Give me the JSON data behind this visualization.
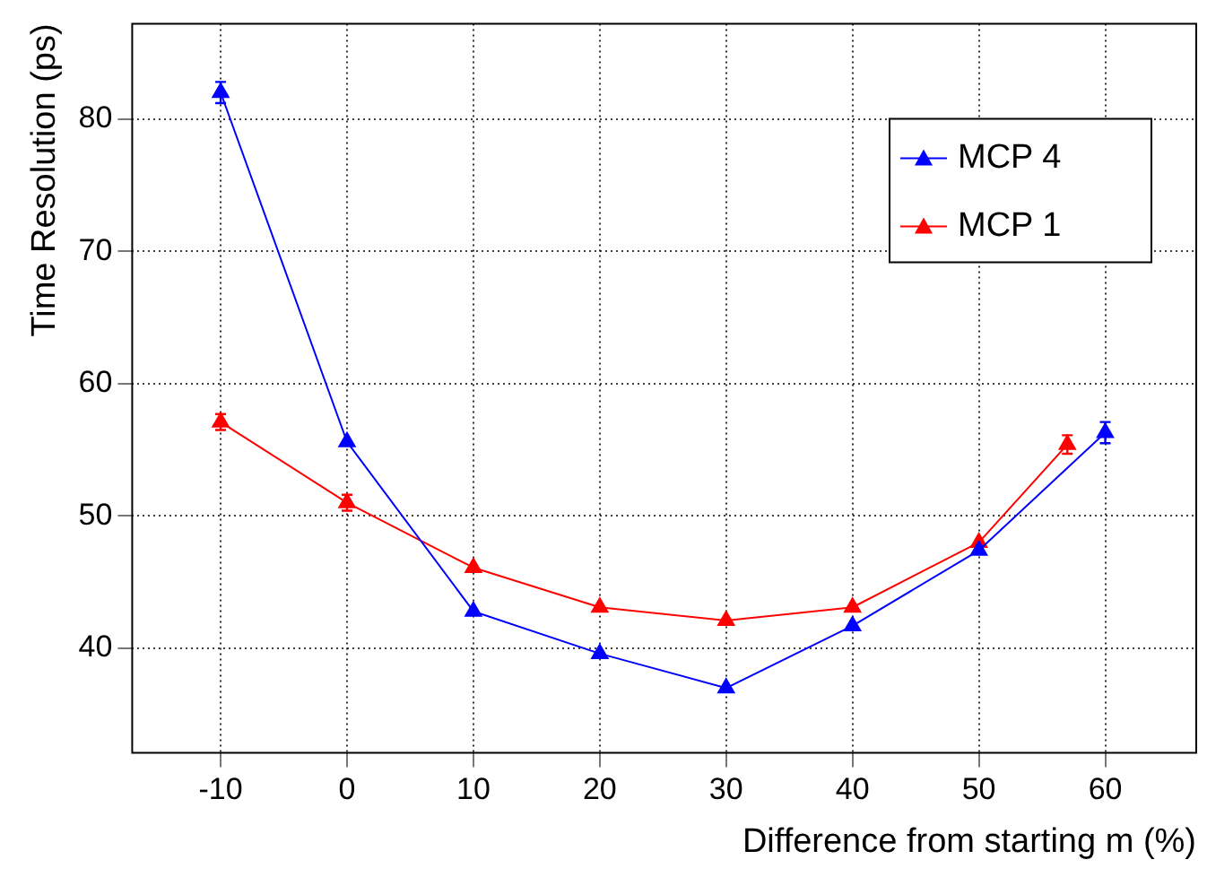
{
  "chart_data": {
    "type": "line",
    "xlabel": "Difference from starting m (%)",
    "ylabel": "Time Resolution (ps)",
    "x": [
      -10,
      0,
      10,
      20,
      30,
      40,
      50,
      60
    ],
    "xlim": [
      -17,
      67.2
    ],
    "xticks": [
      -10,
      0,
      10,
      20,
      30,
      40,
      50,
      60
    ],
    "ylim": [
      32.1,
      87.2
    ],
    "yticks": [
      40,
      50,
      60,
      70,
      80
    ],
    "grid": true,
    "legend": "top right",
    "marker": "triangle",
    "line_style": "solid",
    "series": [
      {
        "name": "MCP 4",
        "color": "#0000ff",
        "values": [
          82.0,
          55.6,
          42.8,
          39.6,
          37.0,
          41.7,
          47.4,
          56.3
        ],
        "errors": [
          0.8,
          null,
          null,
          null,
          null,
          null,
          null,
          0.8
        ]
      },
      {
        "name": "MCP 1",
        "color": "#ff0000",
        "x": [
          -10,
          0,
          10,
          20,
          30,
          40,
          50,
          57
        ],
        "values": [
          57.1,
          51.0,
          46.1,
          43.1,
          42.1,
          43.1,
          48.0,
          55.4
        ],
        "errors": [
          0.6,
          0.6,
          null,
          null,
          null,
          null,
          null,
          0.7
        ]
      }
    ]
  }
}
